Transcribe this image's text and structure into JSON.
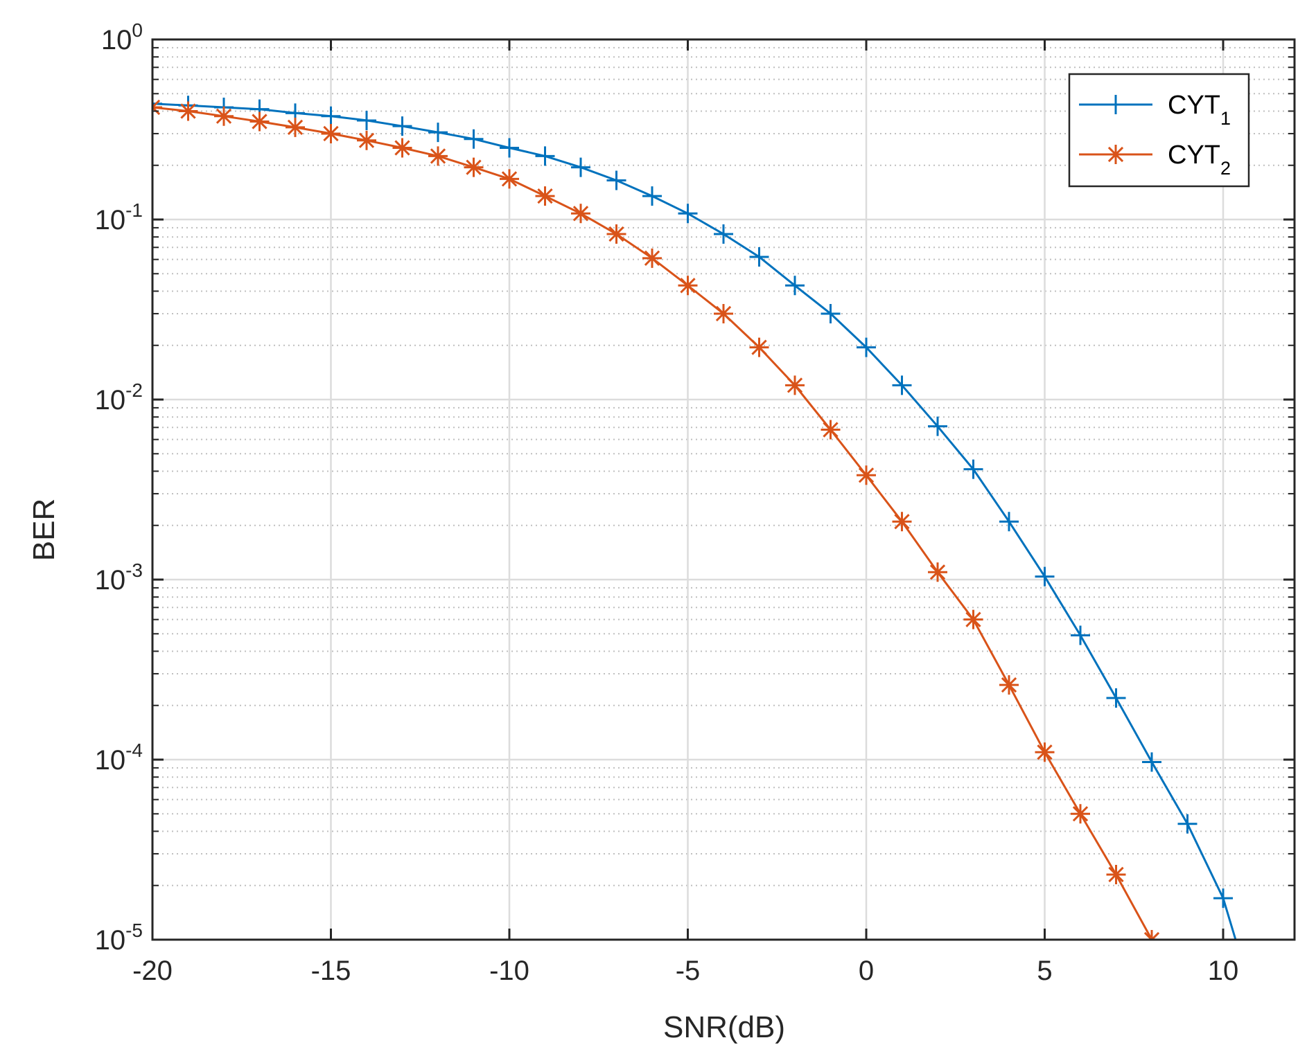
{
  "chart_data": {
    "type": "line",
    "xlabel": "SNR(dB)",
    "ylabel": "BER",
    "xlim": [
      -20,
      12
    ],
    "ylim": [
      1e-05,
      1
    ],
    "yscale": "log",
    "grid": true,
    "minor_grid": "dotted",
    "legend_position": "top-right",
    "x_ticks": [
      {
        "value": -20,
        "label": "-20"
      },
      {
        "value": -15,
        "label": "-15"
      },
      {
        "value": -10,
        "label": "-10"
      },
      {
        "value": -5,
        "label": "-5"
      },
      {
        "value": 0,
        "label": "0"
      },
      {
        "value": 5,
        "label": "5"
      },
      {
        "value": 10,
        "label": "10"
      }
    ],
    "y_ticks": [
      {
        "value": 1,
        "base": "10",
        "exp": "0"
      },
      {
        "value": 0.1,
        "base": "10",
        "exp": "-1"
      },
      {
        "value": 0.01,
        "base": "10",
        "exp": "-2"
      },
      {
        "value": 0.001,
        "base": "10",
        "exp": "-3"
      },
      {
        "value": 0.0001,
        "base": "10",
        "exp": "-4"
      },
      {
        "value": 1e-05,
        "base": "10",
        "exp": "-5"
      }
    ],
    "series": [
      {
        "name": "CYT",
        "name_sub": "1",
        "color": "#0072BD",
        "marker": "plus",
        "x": [
          -20,
          -19,
          -18,
          -17,
          -16,
          -15,
          -14,
          -13,
          -12,
          -11,
          -10,
          -9,
          -8,
          -7,
          -6,
          -5,
          -4,
          -3,
          -2,
          -1,
          0,
          1,
          2,
          3,
          4,
          5,
          6,
          7,
          8,
          9,
          10,
          10.35
        ],
        "y": [
          0.44,
          0.43,
          0.42,
          0.41,
          0.39,
          0.375,
          0.355,
          0.33,
          0.305,
          0.28,
          0.25,
          0.225,
          0.195,
          0.165,
          0.135,
          0.108,
          0.083,
          0.062,
          0.043,
          0.03,
          0.0195,
          0.012,
          0.0071,
          0.0041,
          0.0021,
          0.00104,
          0.00049,
          0.00022,
          9.7e-05,
          4.4e-05,
          1.7e-05,
          1e-05
        ]
      },
      {
        "name": "CYT",
        "name_sub": "2",
        "color": "#D95319",
        "marker": "asterisk",
        "x": [
          -20,
          -19,
          -18,
          -17,
          -16,
          -15,
          -14,
          -13,
          -12,
          -11,
          -10,
          -9,
          -8,
          -7,
          -6,
          -5,
          -4,
          -3,
          -2,
          -1,
          0,
          1,
          2,
          3,
          4,
          5,
          6,
          7,
          8
        ],
        "y": [
          0.42,
          0.4,
          0.375,
          0.35,
          0.325,
          0.3,
          0.275,
          0.25,
          0.225,
          0.195,
          0.168,
          0.135,
          0.108,
          0.083,
          0.061,
          0.043,
          0.03,
          0.0195,
          0.012,
          0.0068,
          0.0038,
          0.0021,
          0.0011,
          0.0006,
          0.00026,
          0.00011,
          5e-05,
          2.3e-05,
          1e-05
        ]
      }
    ]
  }
}
